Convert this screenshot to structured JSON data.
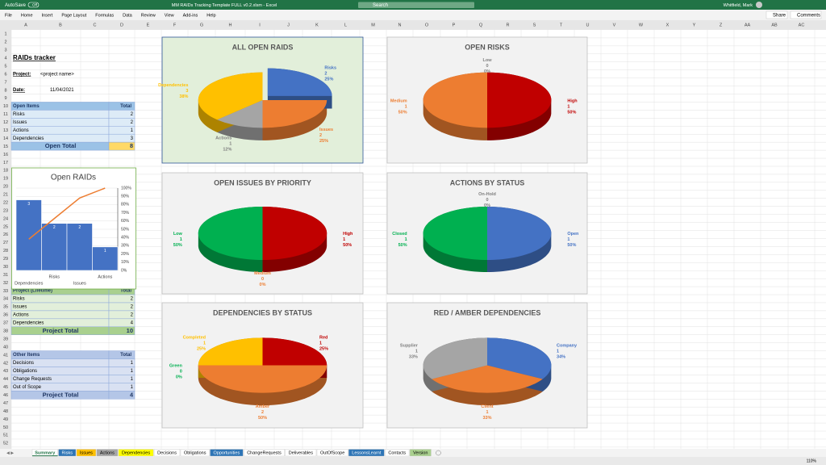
{
  "window": {
    "autosave_label": "AutoSave",
    "autosave_state": "Off",
    "title": "MM RAIDs Tracking Template FULL v0.2.xlsm - Excel",
    "search": "Search",
    "user": "Whitfield, Mark"
  },
  "ribbon": {
    "tabs": [
      "File",
      "Home",
      "Insert",
      "Page Layout",
      "Formulas",
      "Data",
      "Review",
      "View",
      "Add-ins",
      "Help"
    ],
    "share": "Share",
    "comments": "Comments"
  },
  "grid": {
    "columns": [
      "A",
      "B",
      "C",
      "D",
      "E",
      "F",
      "G",
      "H",
      "I",
      "J",
      "K",
      "L",
      "M",
      "N",
      "O",
      "P",
      "Q",
      "R",
      "S",
      "T",
      "U",
      "V",
      "W",
      "X",
      "Y",
      "Z",
      "AA",
      "AB",
      "AC"
    ],
    "rows": [
      1,
      2,
      3,
      4,
      5,
      6,
      7,
      8,
      9,
      10,
      11,
      12,
      13,
      14,
      15,
      16,
      17,
      18,
      19,
      20,
      21,
      22,
      23,
      24,
      25,
      26,
      27,
      28,
      29,
      30,
      31,
      32,
      33,
      34,
      35,
      36,
      37,
      38,
      39,
      40,
      41,
      42,
      43,
      44,
      45,
      46,
      47,
      48,
      49,
      50,
      51,
      52
    ]
  },
  "sheet": {
    "title": "RAIDs tracker",
    "project_label": "Project:",
    "project_value": "<project name>",
    "date_label": "Date:",
    "date_value": "11/04/2021",
    "tables": [
      {
        "header": [
          "Open Items",
          "Total"
        ],
        "rows": [
          [
            "Risks",
            2
          ],
          [
            "Issues",
            2
          ],
          [
            "Actions",
            1
          ],
          [
            "Dependencies",
            3
          ]
        ],
        "total": [
          "Open Total",
          8
        ],
        "header_color": "#9bc2e6",
        "row_color": "#ddebf7",
        "total_color": "#9bc2e6",
        "total_value_color": "#ffd966",
        "text_color": "#1f3864"
      },
      {
        "header": [
          "Project (Lifetime)",
          "Total"
        ],
        "rows": [
          [
            "Risks",
            2
          ],
          [
            "Issues",
            2
          ],
          [
            "Actions",
            2
          ],
          [
            "Dependencies",
            4
          ]
        ],
        "total": [
          "Project Total",
          10
        ],
        "header_color": "#a9d08e",
        "row_color": "#e2efda",
        "total_color": "#a9d08e",
        "total_value_color": "#a9d08e",
        "text_color": "#203764"
      },
      {
        "header": [
          "Other Items",
          "Total"
        ],
        "rows": [
          [
            "Decisions",
            1
          ],
          [
            "Obligations",
            1
          ],
          [
            "Change Requests",
            1
          ],
          [
            "Out of Scope",
            1
          ]
        ],
        "total": [
          "Project Total",
          4
        ],
        "header_color": "#b4c6e7",
        "row_color": "#d9e1f2",
        "total_color": "#b4c6e7",
        "total_value_color": "#b4c6e7",
        "text_color": "#203764"
      }
    ]
  },
  "pareto": {
    "type": "bar",
    "title": "Open RAIDs",
    "categories": [
      "Dependencies",
      "Risks",
      "Issues",
      "Actions"
    ],
    "values": [
      3,
      2,
      2,
      1
    ],
    "color": "#4472c4",
    "ylim": [
      0,
      3.5
    ],
    "line": {
      "values": [
        38,
        63,
        88,
        100
      ],
      "color": "#ed7d31"
    },
    "y2lim": [
      0,
      100
    ],
    "y2ticks": [
      {
        "value": 0,
        "label": "0%"
      },
      {
        "value": 10,
        "label": "10%"
      },
      {
        "value": 20,
        "label": "20%"
      },
      {
        "value": 30,
        "label": "30%"
      },
      {
        "value": 40,
        "label": "40%"
      },
      {
        "value": 50,
        "label": "50%"
      },
      {
        "value": 60,
        "label": "60%"
      },
      {
        "value": 70,
        "label": "70%"
      },
      {
        "value": 80,
        "label": "80%"
      },
      {
        "value": 90,
        "label": "90%"
      },
      {
        "value": 100,
        "label": "100%"
      }
    ],
    "grid": true
  },
  "charts": [
    {
      "type": "pie",
      "title": "ALL OPEN RAIDS",
      "background": "#e2efda",
      "border": "#2f5597",
      "categories": [
        "Risks",
        "Issues",
        "Actions",
        "Dependencies"
      ],
      "values": [
        2,
        2,
        1,
        3
      ],
      "percent_labels": [
        "25%",
        "25%",
        "12%",
        "38%"
      ],
      "colors": [
        "#4472c4",
        "#ed7d31",
        "#a5a5a5",
        "#ffc000"
      ],
      "explode": [
        true,
        false,
        false,
        false
      ]
    },
    {
      "type": "pie",
      "title": "OPEN RISKS",
      "background": "#f2f2f2",
      "border": "#bfbfbf",
      "categories": [
        "High",
        "Medium",
        "Low"
      ],
      "values": [
        1,
        1,
        0
      ],
      "percent_labels": [
        "50%",
        "50%",
        "0%"
      ],
      "colors": [
        "#c00000",
        "#ed7d31",
        "#a5a5a5"
      ],
      "explode": [
        false,
        false,
        false
      ]
    },
    {
      "type": "pie",
      "title": "OPEN ISSUES BY PRIORITY",
      "background": "#f2f2f2",
      "border": "#bfbfbf",
      "categories": [
        "High",
        "Medium",
        "Low"
      ],
      "values": [
        1,
        0,
        1
      ],
      "percent_labels": [
        "50%",
        "0%",
        "50%"
      ],
      "colors": [
        "#c00000",
        "#ed7d31",
        "#00b050"
      ],
      "explode": [
        false,
        false,
        false
      ]
    },
    {
      "type": "pie",
      "title": "ACTIONS BY STATUS",
      "background": "#f2f2f2",
      "border": "#bfbfbf",
      "categories": [
        "Open",
        "Closed",
        "On-Hold"
      ],
      "values": [
        1,
        1,
        0
      ],
      "percent_labels": [
        "50%",
        "50%",
        "0%"
      ],
      "colors": [
        "#4472c4",
        "#00b050",
        "#a5a5a5"
      ],
      "explode": [
        false,
        false,
        false
      ]
    },
    {
      "type": "pie",
      "title": "DEPENDENCIES BY STATUS",
      "background": "#f2f2f2",
      "border": "#bfbfbf",
      "categories": [
        "Red",
        "Amber",
        "Green",
        "Completed"
      ],
      "values": [
        1,
        2,
        0,
        1
      ],
      "percent_labels": [
        "25%",
        "50%",
        "0%",
        "25%"
      ],
      "colors": [
        "#c00000",
        "#ed7d31",
        "#00b050",
        "#ffc000"
      ],
      "explode": [
        false,
        false,
        false,
        false
      ]
    },
    {
      "type": "pie",
      "title": "RED / AMBER DEPENDENCIES",
      "background": "#f2f2f2",
      "border": "#bfbfbf",
      "categories": [
        "Company",
        "Client",
        "Supplier"
      ],
      "values": [
        1,
        1,
        1
      ],
      "percent_labels": [
        "34%",
        "33%",
        "33%"
      ],
      "colors": [
        "#4472c4",
        "#ed7d31",
        "#a5a5a5"
      ],
      "explode": [
        false,
        false,
        false
      ]
    }
  ],
  "sheet_tabs": [
    {
      "name": "Summary",
      "color": null
    },
    {
      "name": "Risks",
      "color": "#2e75b6"
    },
    {
      "name": "Issues",
      "color": "#ffc000"
    },
    {
      "name": "Actions",
      "color": "#a5a5a5"
    },
    {
      "name": "Dependencies",
      "color": "#ffff00"
    },
    {
      "name": "Decisions",
      "color": null
    },
    {
      "name": "Obligations",
      "color": null
    },
    {
      "name": "Opportunities",
      "color": "#2e75b6"
    },
    {
      "name": "ChangeRequests",
      "color": null
    },
    {
      "name": "Deliverables",
      "color": null
    },
    {
      "name": "OutOfScope",
      "color": null
    },
    {
      "name": "LessonsLearnt",
      "color": "#2e75b6"
    },
    {
      "name": "Contacts",
      "color": null
    },
    {
      "name": "Version",
      "color": "#a9d08e"
    }
  ],
  "status": {
    "zoom": "110%"
  }
}
